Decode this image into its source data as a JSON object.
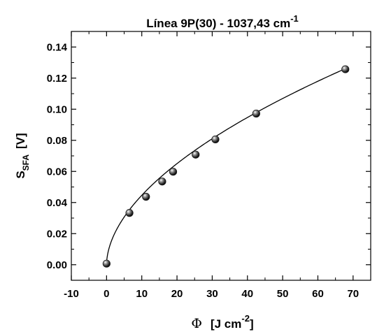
{
  "chart_data": {
    "type": "scatter",
    "title": {
      "main": "Línea 9P(30) - 1037,43 cm",
      "superscript": "-1"
    },
    "xlabel": {
      "symbol": "Φ",
      "text": "[J cm",
      "superscript": "-2",
      "close": "]"
    },
    "ylabel": {
      "main": "S",
      "subscript": "SFA",
      "unit": "[V]"
    },
    "xlim": [
      -10,
      75
    ],
    "ylim": [
      -0.01,
      0.15
    ],
    "x_ticks": [
      -10,
      0,
      10,
      20,
      30,
      40,
      50,
      60,
      70
    ],
    "x_tick_labels": [
      "-10",
      "0",
      "10",
      "20",
      "30",
      "40",
      "50",
      "60",
      "70"
    ],
    "y_ticks": [
      0.0,
      0.02,
      0.04,
      0.06,
      0.08,
      0.1,
      0.12,
      0.14
    ],
    "y_tick_labels": [
      "0.00",
      "0.02",
      "0.04",
      "0.06",
      "0.08",
      "0.10",
      "0.12",
      "0.14"
    ],
    "grid": false,
    "legend": "none",
    "series": [
      {
        "x": [
          0.0,
          6.5,
          11.2,
          15.8,
          18.9,
          25.3,
          30.9,
          42.5,
          67.8
        ],
        "y": [
          0.0007,
          0.0333,
          0.0437,
          0.0535,
          0.0598,
          0.0708,
          0.0806,
          0.0972,
          0.1257
        ],
        "marker_color": "#1a1a1a"
      }
    ],
    "fit_curve": {
      "function": "power",
      "a": 0.0128,
      "b": 0.5425,
      "x_range": [
        0.0,
        68.0
      ],
      "color": "#000000"
    }
  }
}
